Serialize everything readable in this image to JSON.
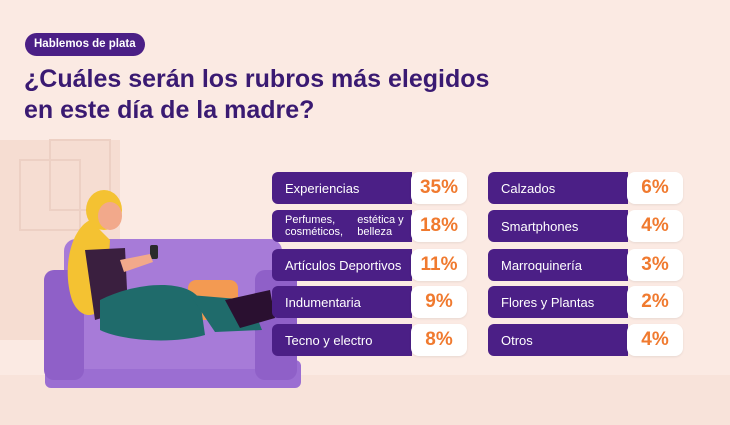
{
  "badge": "Hablemos de plata",
  "title_line1": "¿Cuáles serán los rubros más elegidos",
  "title_line2": "en este día de la madre?",
  "colors": {
    "background": "#fbeae3",
    "accent_purple": "#4b1f86",
    "value_orange": "#f07a2f",
    "sofa": "#a77bd8"
  },
  "chart_data": {
    "type": "table",
    "categories": [
      "Experiencias",
      "Perfumes, cosméticos, estética y belleza",
      "Artículos Deportivos",
      "Indumentaria",
      "Tecno y electro",
      "Calzados",
      "Smartphones",
      "Marroquinería",
      "Flores y Plantas",
      "Otros"
    ],
    "values": [
      35,
      18,
      11,
      9,
      8,
      6,
      4,
      3,
      2,
      4
    ],
    "value_labels": [
      "35%",
      "18%",
      "11%",
      "9%",
      "8%",
      "6%",
      "4%",
      "3%",
      "2%",
      "4%"
    ]
  },
  "label_lines": {
    "perfumes_1": "Perfumes, cosméticos,",
    "perfumes_2": "estética y belleza"
  }
}
